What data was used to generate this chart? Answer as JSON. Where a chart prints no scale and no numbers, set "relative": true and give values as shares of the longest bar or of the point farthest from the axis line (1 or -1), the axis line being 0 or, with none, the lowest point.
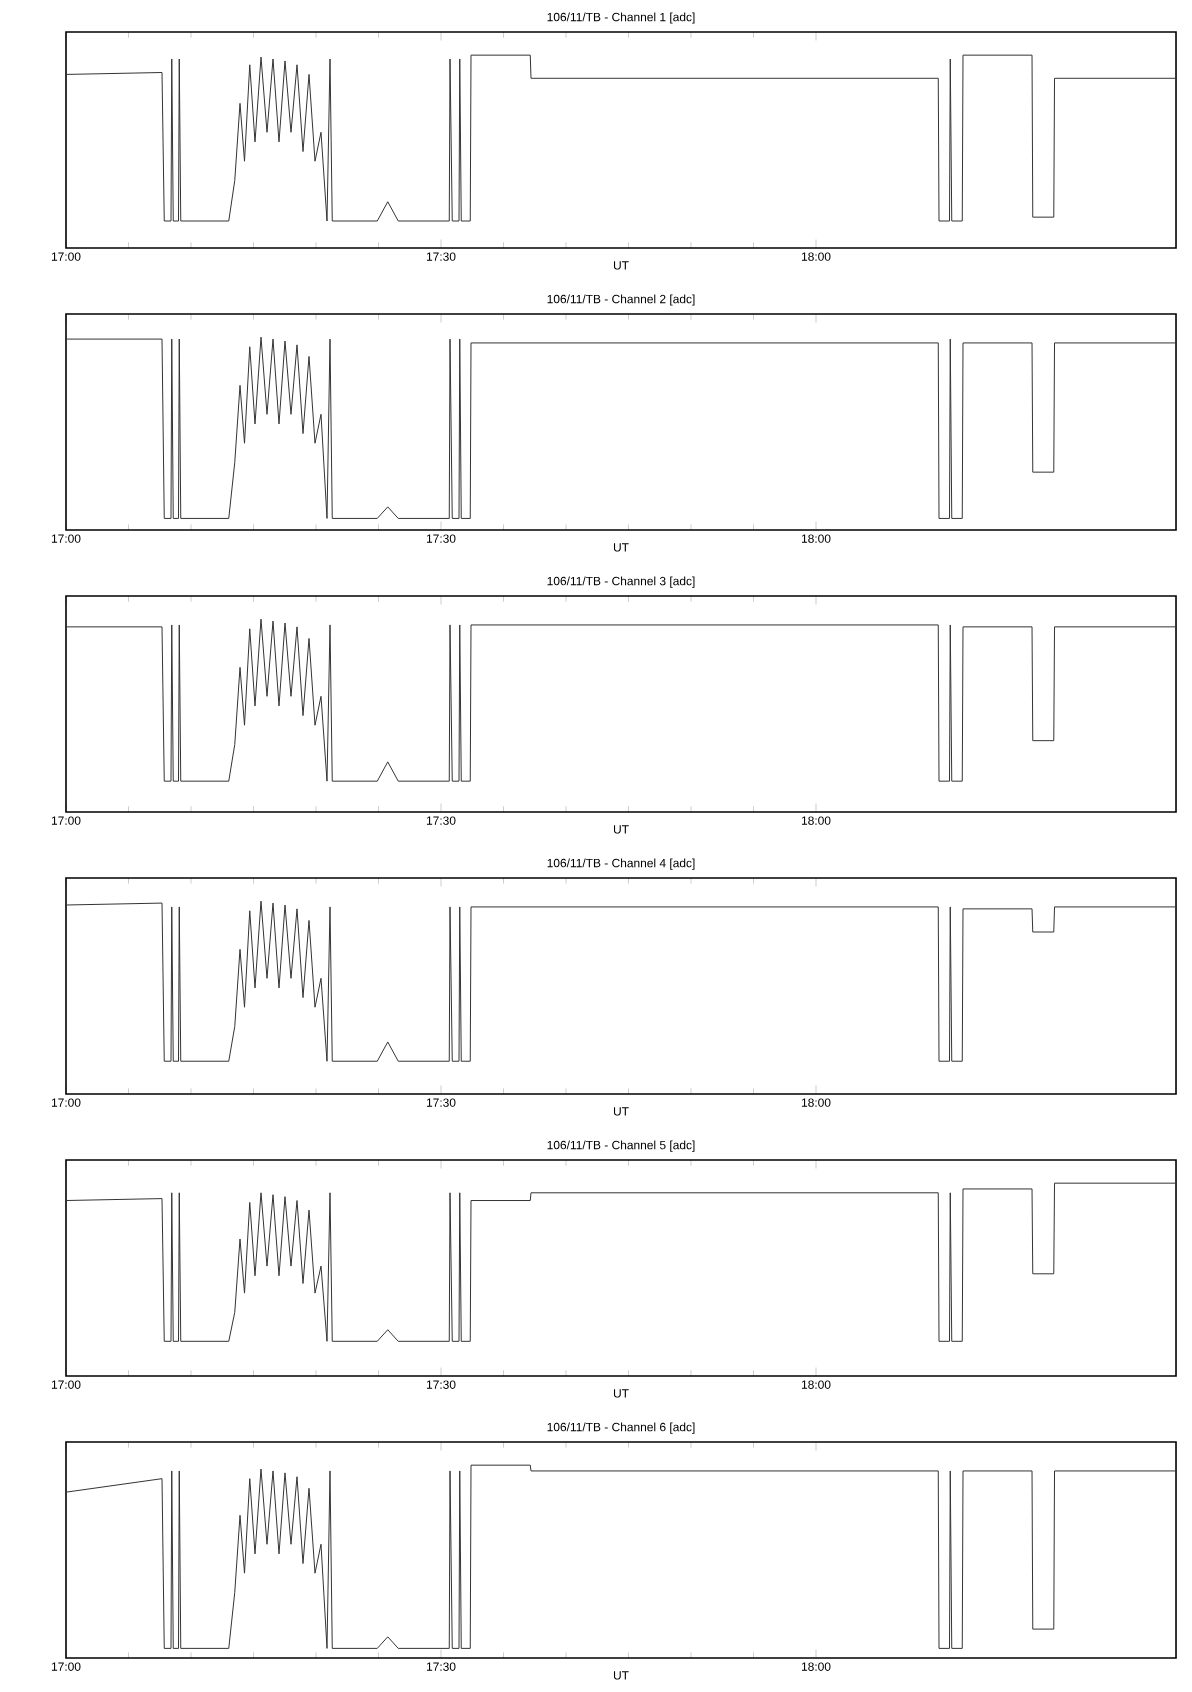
{
  "chart_data": [
    {
      "type": "line",
      "title": "106/11/TB - Channel 1 [adc]",
      "xlabel": "UT",
      "relative": true,
      "tick_labels": "x",
      "xlim": [
        17.0,
        18.48
      ],
      "xticks": [
        {
          "value": 17.0,
          "label": "17:00"
        },
        {
          "value": 17.5,
          "label": "17:30"
        },
        {
          "value": 18.0,
          "label": "18:00"
        }
      ],
      "x": [
        17.0,
        17.128,
        17.131,
        17.14,
        17.141,
        17.143,
        17.15,
        17.151,
        17.153,
        17.217,
        17.225,
        17.232,
        17.238,
        17.245,
        17.252,
        17.26,
        17.268,
        17.276,
        17.284,
        17.292,
        17.3,
        17.308,
        17.316,
        17.324,
        17.332,
        17.34,
        17.348,
        17.352,
        17.355,
        17.415,
        17.429,
        17.443,
        17.511,
        17.512,
        17.515,
        17.524,
        17.525,
        17.527,
        17.539,
        17.54,
        17.619,
        17.62,
        18.163,
        18.164,
        18.178,
        18.179,
        18.181,
        18.195,
        18.196,
        18.288,
        18.289,
        18.317,
        18.318,
        18.479
      ],
      "series": [
        {
          "color": "#333333",
          "values": [
            0.9,
            0.91,
            0.14,
            0.14,
            0.98,
            0.14,
            0.14,
            0.98,
            0.14,
            0.14,
            0.35,
            0.75,
            0.45,
            0.95,
            0.55,
            0.99,
            0.6,
            0.98,
            0.55,
            0.97,
            0.6,
            0.95,
            0.5,
            0.9,
            0.45,
            0.6,
            0.14,
            0.98,
            0.14,
            0.14,
            0.24,
            0.14,
            0.14,
            0.98,
            0.14,
            0.14,
            0.98,
            0.14,
            0.14,
            1.0,
            1.0,
            0.88,
            0.88,
            0.14,
            0.14,
            0.98,
            0.14,
            0.14,
            1.0,
            1.0,
            0.16,
            0.16,
            0.88,
            0.88
          ]
        }
      ]
    },
    {
      "type": "line",
      "title": "106/11/TB - Channel 2 [adc]",
      "xlabel": "UT",
      "relative": true,
      "tick_labels": "x",
      "xlim": [
        17.0,
        18.48
      ],
      "xticks": [
        {
          "value": 17.0,
          "label": "17:00"
        },
        {
          "value": 17.5,
          "label": "17:30"
        },
        {
          "value": 18.0,
          "label": "18:00"
        }
      ],
      "x": [
        17.0,
        17.128,
        17.131,
        17.14,
        17.141,
        17.143,
        17.15,
        17.151,
        17.153,
        17.217,
        17.225,
        17.232,
        17.238,
        17.245,
        17.252,
        17.26,
        17.268,
        17.276,
        17.284,
        17.292,
        17.3,
        17.308,
        17.316,
        17.324,
        17.332,
        17.34,
        17.348,
        17.352,
        17.355,
        17.415,
        17.429,
        17.443,
        17.511,
        17.512,
        17.515,
        17.524,
        17.525,
        17.527,
        17.539,
        17.54,
        17.619,
        17.62,
        18.163,
        18.164,
        18.178,
        18.179,
        18.181,
        18.195,
        18.196,
        18.288,
        18.289,
        18.317,
        18.318,
        18.479
      ],
      "series": [
        {
          "color": "#333333",
          "values": [
            0.99,
            0.99,
            0.06,
            0.06,
            0.99,
            0.06,
            0.06,
            0.99,
            0.06,
            0.06,
            0.35,
            0.75,
            0.45,
            0.95,
            0.55,
            1.0,
            0.6,
            0.99,
            0.55,
            0.98,
            0.6,
            0.96,
            0.5,
            0.9,
            0.45,
            0.6,
            0.06,
            0.99,
            0.06,
            0.06,
            0.12,
            0.06,
            0.06,
            0.99,
            0.06,
            0.06,
            0.99,
            0.06,
            0.06,
            0.97,
            0.97,
            0.97,
            0.97,
            0.06,
            0.06,
            0.99,
            0.06,
            0.06,
            0.97,
            0.97,
            0.3,
            0.3,
            0.97,
            0.97
          ]
        }
      ]
    },
    {
      "type": "line",
      "title": "106/11/TB - Channel 3 [adc]",
      "xlabel": "UT",
      "relative": true,
      "tick_labels": "x",
      "xlim": [
        17.0,
        18.48
      ],
      "xticks": [
        {
          "value": 17.0,
          "label": "17:00"
        },
        {
          "value": 17.5,
          "label": "17:30"
        },
        {
          "value": 18.0,
          "label": "18:00"
        }
      ],
      "x": [
        17.0,
        17.128,
        17.131,
        17.14,
        17.141,
        17.143,
        17.15,
        17.151,
        17.153,
        17.217,
        17.225,
        17.232,
        17.238,
        17.245,
        17.252,
        17.26,
        17.268,
        17.276,
        17.284,
        17.292,
        17.3,
        17.308,
        17.316,
        17.324,
        17.332,
        17.34,
        17.348,
        17.352,
        17.355,
        17.415,
        17.429,
        17.443,
        17.511,
        17.512,
        17.515,
        17.524,
        17.525,
        17.527,
        17.539,
        17.54,
        17.619,
        17.62,
        18.163,
        18.164,
        18.178,
        18.179,
        18.181,
        18.195,
        18.196,
        18.288,
        18.289,
        18.317,
        18.318,
        18.479
      ],
      "series": [
        {
          "color": "#333333",
          "values": [
            0.96,
            0.96,
            0.16,
            0.16,
            0.97,
            0.16,
            0.16,
            0.97,
            0.16,
            0.16,
            0.35,
            0.75,
            0.45,
            0.95,
            0.55,
            1.0,
            0.6,
            0.99,
            0.55,
            0.98,
            0.6,
            0.96,
            0.5,
            0.9,
            0.45,
            0.6,
            0.16,
            0.97,
            0.16,
            0.16,
            0.26,
            0.16,
            0.16,
            0.97,
            0.16,
            0.16,
            0.97,
            0.16,
            0.16,
            0.97,
            0.97,
            0.97,
            0.97,
            0.16,
            0.16,
            0.97,
            0.16,
            0.16,
            0.96,
            0.96,
            0.37,
            0.37,
            0.96,
            0.96
          ]
        }
      ]
    },
    {
      "type": "line",
      "title": "106/11/TB - Channel 4 [adc]",
      "xlabel": "UT",
      "relative": true,
      "tick_labels": "x",
      "xlim": [
        17.0,
        18.48
      ],
      "xticks": [
        {
          "value": 17.0,
          "label": "17:00"
        },
        {
          "value": 17.5,
          "label": "17:30"
        },
        {
          "value": 18.0,
          "label": "18:00"
        }
      ],
      "x": [
        17.0,
        17.128,
        17.131,
        17.14,
        17.141,
        17.143,
        17.15,
        17.151,
        17.153,
        17.217,
        17.225,
        17.232,
        17.238,
        17.245,
        17.252,
        17.26,
        17.268,
        17.276,
        17.284,
        17.292,
        17.3,
        17.308,
        17.316,
        17.324,
        17.332,
        17.34,
        17.348,
        17.352,
        17.355,
        17.415,
        17.429,
        17.443,
        17.511,
        17.512,
        17.515,
        17.524,
        17.525,
        17.527,
        17.539,
        17.54,
        17.619,
        17.62,
        18.163,
        18.164,
        18.178,
        18.179,
        18.181,
        18.195,
        18.196,
        18.288,
        18.289,
        18.317,
        18.318,
        18.479
      ],
      "series": [
        {
          "color": "#333333",
          "values": [
            0.98,
            0.99,
            0.17,
            0.17,
            0.97,
            0.17,
            0.17,
            0.97,
            0.17,
            0.17,
            0.35,
            0.75,
            0.45,
            0.95,
            0.55,
            1.0,
            0.6,
            0.99,
            0.55,
            0.98,
            0.6,
            0.96,
            0.5,
            0.9,
            0.45,
            0.6,
            0.17,
            0.97,
            0.17,
            0.17,
            0.27,
            0.17,
            0.17,
            0.97,
            0.17,
            0.17,
            0.97,
            0.17,
            0.17,
            0.97,
            0.97,
            0.97,
            0.97,
            0.17,
            0.17,
            0.97,
            0.17,
            0.17,
            0.96,
            0.96,
            0.84,
            0.84,
            0.97,
            0.97
          ]
        }
      ]
    },
    {
      "type": "line",
      "title": "106/11/TB - Channel 5 [adc]",
      "xlabel": "UT",
      "relative": true,
      "tick_labels": "x",
      "xlim": [
        17.0,
        18.48
      ],
      "xticks": [
        {
          "value": 17.0,
          "label": "17:00"
        },
        {
          "value": 17.5,
          "label": "17:30"
        },
        {
          "value": 18.0,
          "label": "18:00"
        }
      ],
      "x": [
        17.0,
        17.128,
        17.131,
        17.14,
        17.141,
        17.143,
        17.15,
        17.151,
        17.153,
        17.217,
        17.225,
        17.232,
        17.238,
        17.245,
        17.252,
        17.26,
        17.268,
        17.276,
        17.284,
        17.292,
        17.3,
        17.308,
        17.316,
        17.324,
        17.332,
        17.34,
        17.348,
        17.352,
        17.355,
        17.415,
        17.429,
        17.443,
        17.511,
        17.512,
        17.515,
        17.524,
        17.525,
        17.527,
        17.539,
        17.54,
        17.619,
        17.62,
        18.163,
        18.164,
        18.178,
        18.179,
        18.181,
        18.195,
        18.196,
        18.288,
        18.289,
        18.317,
        18.318,
        18.479
      ],
      "series": [
        {
          "color": "#333333",
          "values": [
            0.91,
            0.92,
            0.18,
            0.18,
            0.95,
            0.18,
            0.18,
            0.95,
            0.18,
            0.18,
            0.33,
            0.71,
            0.43,
            0.9,
            0.52,
            0.95,
            0.57,
            0.94,
            0.52,
            0.93,
            0.57,
            0.91,
            0.48,
            0.86,
            0.43,
            0.57,
            0.18,
            0.95,
            0.18,
            0.18,
            0.24,
            0.18,
            0.18,
            0.95,
            0.18,
            0.18,
            0.95,
            0.18,
            0.18,
            0.91,
            0.91,
            0.95,
            0.95,
            0.18,
            0.18,
            0.95,
            0.18,
            0.18,
            0.97,
            0.97,
            0.53,
            0.53,
            1.0,
            1.0
          ]
        }
      ]
    },
    {
      "type": "line",
      "title": "106/11/TB - Channel 6 [adc]",
      "xlabel": "UT",
      "relative": true,
      "tick_labels": "x",
      "xlim": [
        17.0,
        18.48
      ],
      "xticks": [
        {
          "value": 17.0,
          "label": "17:00"
        },
        {
          "value": 17.5,
          "label": "17:30"
        },
        {
          "value": 18.0,
          "label": "18:00"
        }
      ],
      "x": [
        17.0,
        17.128,
        17.131,
        17.14,
        17.141,
        17.143,
        17.15,
        17.151,
        17.153,
        17.217,
        17.225,
        17.232,
        17.238,
        17.245,
        17.252,
        17.26,
        17.268,
        17.276,
        17.284,
        17.292,
        17.3,
        17.308,
        17.316,
        17.324,
        17.332,
        17.34,
        17.348,
        17.352,
        17.355,
        17.415,
        17.429,
        17.443,
        17.511,
        17.512,
        17.515,
        17.524,
        17.525,
        17.527,
        17.539,
        17.54,
        17.619,
        17.62,
        18.163,
        18.164,
        18.178,
        18.179,
        18.181,
        18.195,
        18.196,
        18.288,
        18.289,
        18.317,
        18.318,
        18.479
      ],
      "series": [
        {
          "color": "#333333",
          "values": [
            0.86,
            0.93,
            0.05,
            0.05,
            0.97,
            0.05,
            0.05,
            0.97,
            0.05,
            0.05,
            0.34,
            0.74,
            0.44,
            0.93,
            0.54,
            0.98,
            0.59,
            0.97,
            0.54,
            0.96,
            0.59,
            0.94,
            0.49,
            0.88,
            0.44,
            0.59,
            0.05,
            0.97,
            0.05,
            0.05,
            0.11,
            0.05,
            0.05,
            0.97,
            0.05,
            0.05,
            0.97,
            0.05,
            0.05,
            1.0,
            1.0,
            0.97,
            0.97,
            0.05,
            0.05,
            0.97,
            0.05,
            0.05,
            0.97,
            0.97,
            0.15,
            0.15,
            0.97,
            0.97
          ]
        }
      ]
    }
  ]
}
